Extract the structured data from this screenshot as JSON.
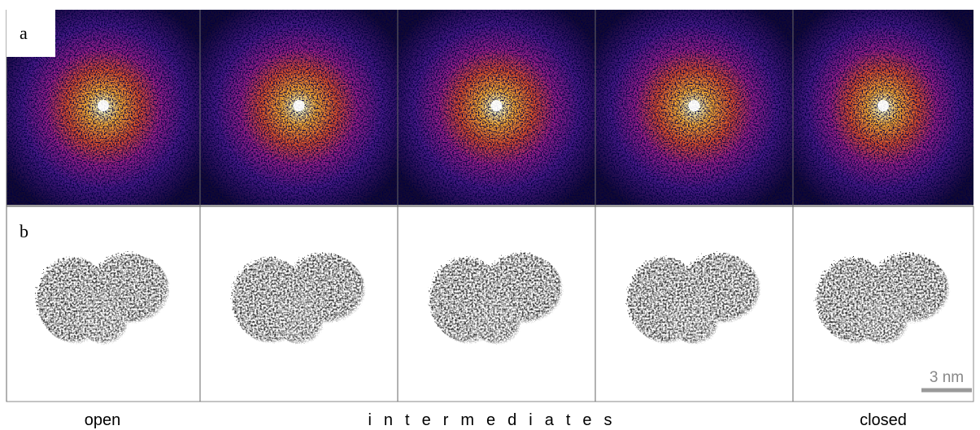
{
  "panels": {
    "a": "a",
    "b": "b"
  },
  "captions": {
    "left": "open",
    "middle": "intermediates",
    "right": "closed"
  },
  "scale_bar": "3 nm"
}
